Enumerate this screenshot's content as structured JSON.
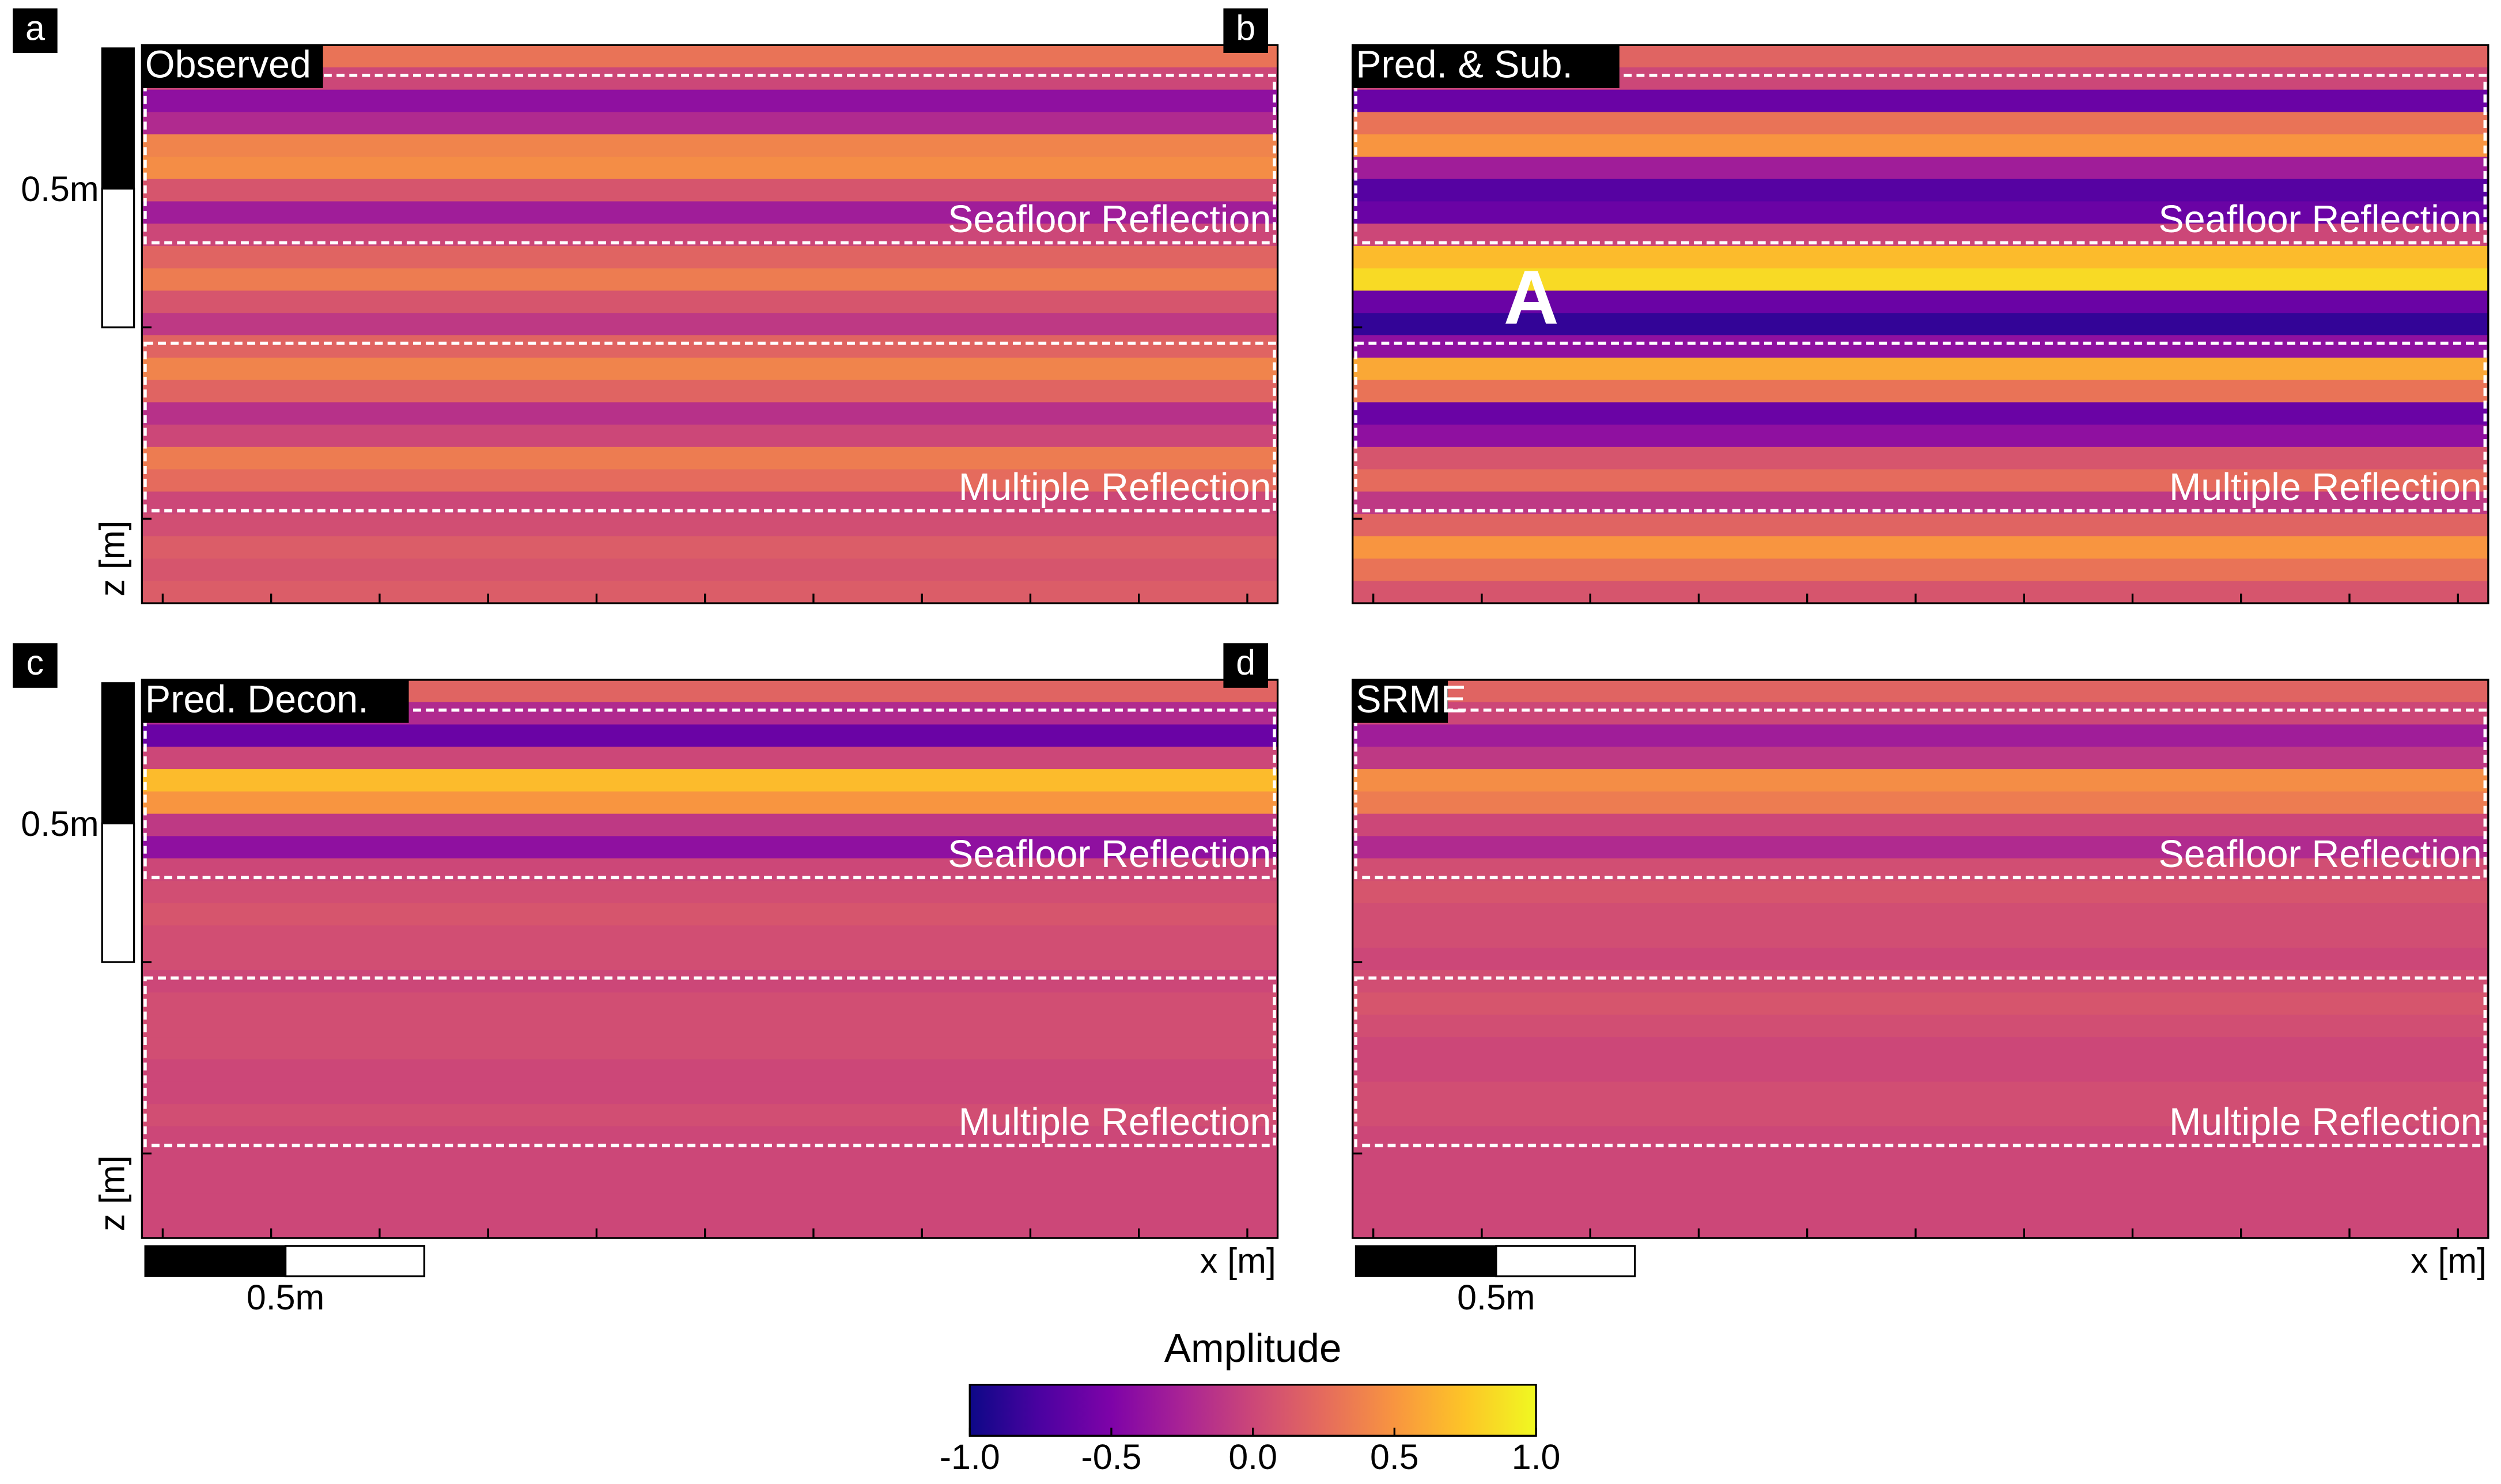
{
  "chart_data": {
    "type": "heatmap",
    "colormap": "plasma",
    "panels": [
      {
        "label": "a",
        "title": "Observed",
        "upper_box": "Seafloor Reflection",
        "lower_box": "Multiple Reflection",
        "z_scale_label": "0.5m",
        "z_label": "z [m]",
        "values": [
          0.3,
          0.0,
          -0.4,
          -0.2,
          0.4,
          0.45,
          0.1,
          -0.3,
          0.0,
          0.2,
          0.35,
          0.1,
          -0.1,
          0.2,
          0.4,
          0.2,
          -0.15,
          0.0,
          0.35,
          0.25,
          0.0,
          0.05,
          0.15,
          0.1,
          0.15
        ]
      },
      {
        "label": "b",
        "title": "Pred. & Sub.",
        "upper_box": "Seafloor Reflection",
        "lower_box": "Multiple Reflection",
        "annotation": "A",
        "values": [
          0.2,
          0.0,
          -0.6,
          0.3,
          0.5,
          -0.3,
          -0.7,
          -0.6,
          0.0,
          0.7,
          0.85,
          -0.6,
          -0.85,
          -0.4,
          0.6,
          0.3,
          -0.6,
          -0.4,
          0.1,
          0.25,
          -0.1,
          0.2,
          0.5,
          0.3,
          0.1
        ]
      },
      {
        "label": "c",
        "title": "Pred. Decon.",
        "upper_box": "Seafloor Reflection",
        "lower_box": "Multiple Reflection",
        "z_scale_label": "0.5m",
        "z_label": "z [m]",
        "x_scale_label": "0.5m",
        "x_label": "x [m]",
        "values": [
          0.2,
          -0.2,
          -0.6,
          0.0,
          0.7,
          0.5,
          -0.1,
          -0.4,
          0.0,
          0.05,
          0.1,
          0.05,
          0.05,
          0.0,
          0.05,
          0.05,
          0.05,
          0.0,
          0.0,
          0.05,
          0.0,
          0.0,
          0.0,
          0.0,
          0.0
        ]
      },
      {
        "label": "d",
        "title": "SRME",
        "upper_box": "Seafloor Reflection",
        "lower_box": "Multiple Reflection",
        "x_scale_label": "0.5m",
        "x_label": "x [m]",
        "values": [
          0.2,
          0.0,
          -0.3,
          -0.1,
          0.45,
          0.35,
          0.0,
          -0.2,
          0.05,
          0.1,
          0.05,
          0.05,
          0.0,
          0.05,
          0.1,
          0.05,
          0.0,
          0.0,
          0.05,
          0.05,
          0.0,
          0.0,
          0.0,
          0.0,
          0.0
        ]
      }
    ],
    "colorbar": {
      "title": "Amplitude",
      "clim": [
        -1,
        1
      ],
      "ticks": [
        {
          "value": -1,
          "label": "-1.0"
        },
        -0.5,
        {
          "value": 0,
          "label": "0.0"
        },
        0.5,
        {
          "value": 1,
          "label": "1.0"
        }
      ]
    }
  }
}
